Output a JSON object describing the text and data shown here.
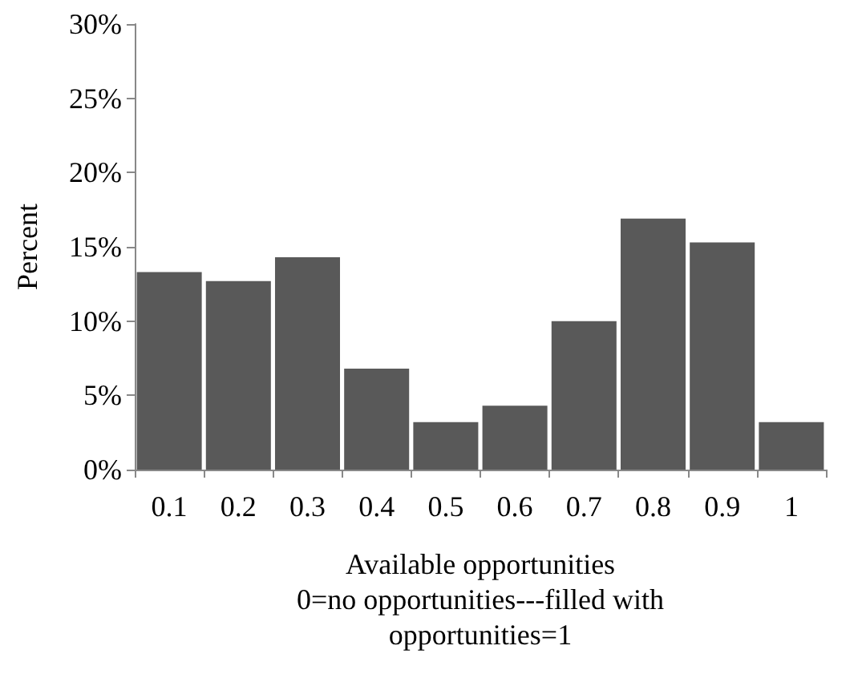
{
  "chart_data": {
    "type": "bar",
    "categories": [
      "0.1",
      "0.2",
      "0.3",
      "0.4",
      "0.5",
      "0.6",
      "0.7",
      "0.8",
      "0.9",
      "1"
    ],
    "values": [
      13.3,
      12.7,
      14.3,
      6.8,
      3.2,
      4.3,
      10.0,
      16.9,
      15.3,
      3.2
    ],
    "color": "#595959",
    "ylabel": "Percent",
    "xlabel": "Available opportunities\n0=no opportunities---filled with\nopportunities=1",
    "ylim": [
      0,
      30
    ],
    "yticks": [
      {
        "value": 0,
        "label": "0%"
      },
      {
        "value": 5,
        "label": "5%"
      },
      {
        "value": 10,
        "label": "10%"
      },
      {
        "value": 15,
        "label": "15%"
      },
      {
        "value": 20,
        "label": "20%"
      },
      {
        "value": 25,
        "label": "25%"
      },
      {
        "value": 30,
        "label": "30%"
      }
    ],
    "grid": false
  }
}
